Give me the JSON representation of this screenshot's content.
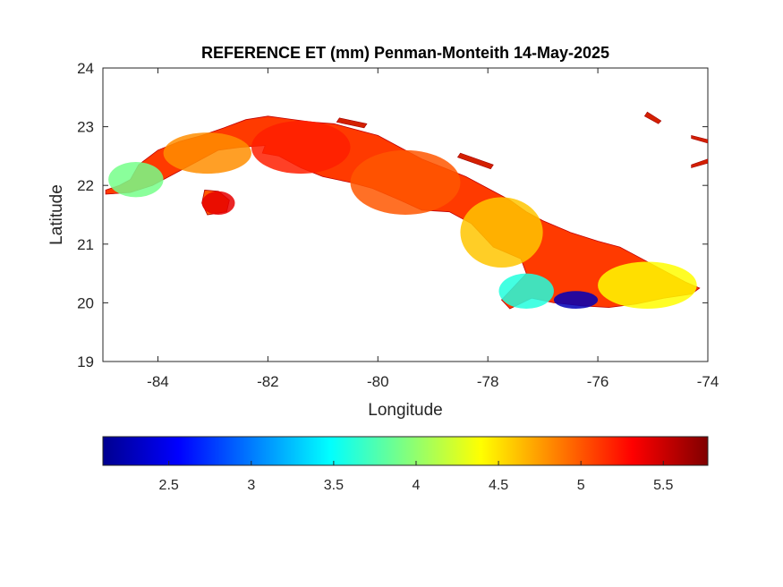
{
  "chart_data": {
    "type": "heatmap",
    "title": "REFERENCE ET (mm) Penman-Monteith 14-May-2025",
    "xlabel": "Longitude",
    "ylabel": "Latitude",
    "xlim": [
      -85,
      -74
    ],
    "ylim": [
      19,
      24
    ],
    "xticks": [
      -84,
      -82,
      -80,
      -78,
      -76,
      -74
    ],
    "yticks": [
      19,
      20,
      21,
      22,
      23,
      24
    ],
    "colorbar": {
      "colormap": "jet",
      "range": [
        2.1,
        5.77
      ],
      "ticks": [
        2.5,
        3,
        3.5,
        4,
        4.5,
        5,
        5.5
      ]
    },
    "landmass_regions": [
      {
        "lon": [
          -84.9,
          -83.9
        ],
        "lat": [
          21.8,
          22.4
        ],
        "value": 3.9
      },
      {
        "lon": [
          -83.9,
          -82.3
        ],
        "lat": [
          22.2,
          22.9
        ],
        "value": 4.8
      },
      {
        "lon": [
          -82.3,
          -80.5
        ],
        "lat": [
          22.2,
          23.1
        ],
        "value": 5.2
      },
      {
        "lon": [
          -80.5,
          -78.5
        ],
        "lat": [
          21.5,
          22.6
        ],
        "value": 5.0
      },
      {
        "lon": [
          -78.5,
          -77.0
        ],
        "lat": [
          20.6,
          21.8
        ],
        "value": 4.6
      },
      {
        "lon": [
          -77.8,
          -76.8
        ],
        "lat": [
          19.9,
          20.5
        ],
        "value": 3.6
      },
      {
        "lon": [
          -76.8,
          -76.0
        ],
        "lat": [
          19.9,
          20.2
        ],
        "value": 2.3
      },
      {
        "lon": [
          -76.0,
          -74.2
        ],
        "lat": [
          19.9,
          20.7
        ],
        "value": 4.4
      },
      {
        "lon": [
          -83.2,
          -82.6
        ],
        "lat": [
          21.5,
          21.9
        ],
        "value": 5.4
      }
    ],
    "grid": false
  }
}
